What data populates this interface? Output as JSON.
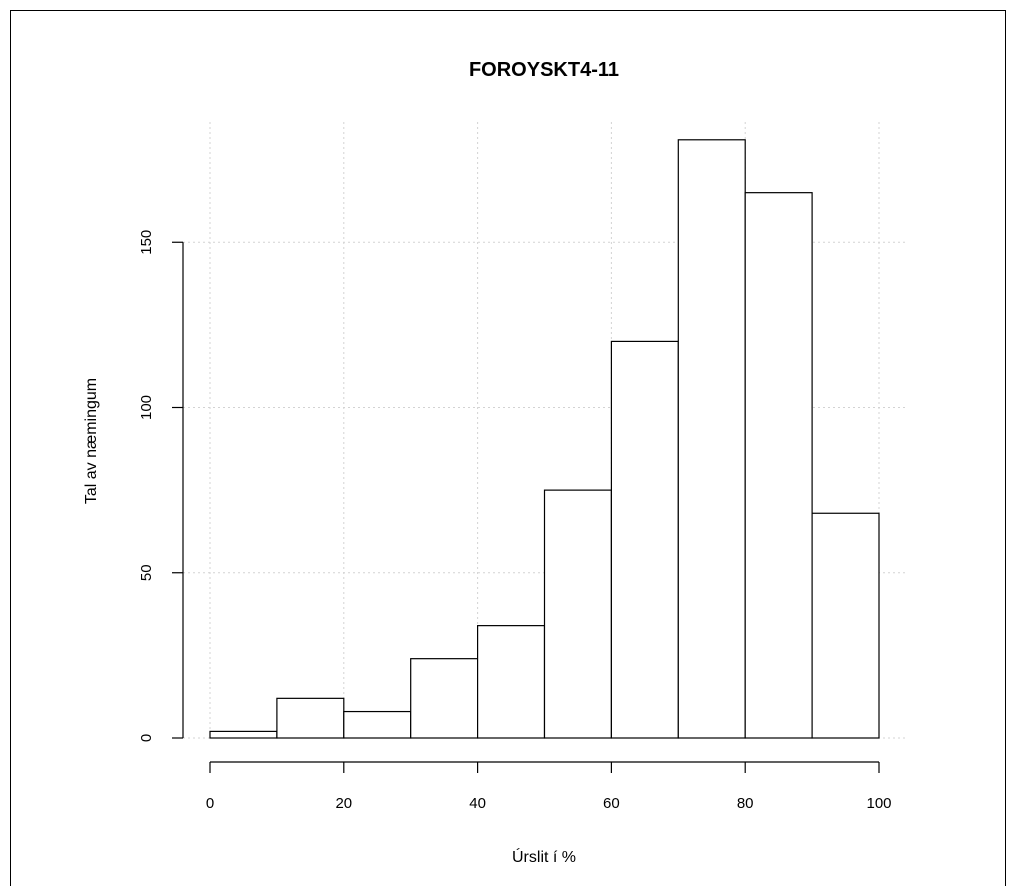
{
  "chart_data": {
    "type": "bar",
    "title": "FOROYSKT4-11",
    "xlabel": "Úrslit í %",
    "ylabel": "Tal av næmingum",
    "bins": [
      {
        "from": 0,
        "to": 10,
        "count": 2
      },
      {
        "from": 10,
        "to": 20,
        "count": 12
      },
      {
        "from": 20,
        "to": 30,
        "count": 8
      },
      {
        "from": 30,
        "to": 40,
        "count": 24
      },
      {
        "from": 40,
        "to": 50,
        "count": 34
      },
      {
        "from": 50,
        "to": 60,
        "count": 75
      },
      {
        "from": 60,
        "to": 70,
        "count": 120
      },
      {
        "from": 70,
        "to": 80,
        "count": 181
      },
      {
        "from": 80,
        "to": 90,
        "count": 165
      },
      {
        "from": 90,
        "to": 100,
        "count": 68
      }
    ],
    "xticks": [
      0,
      20,
      40,
      60,
      80,
      100
    ],
    "yticks": [
      0,
      50,
      100,
      150
    ],
    "xlim": [
      0,
      100
    ],
    "ylim": [
      0,
      181
    ],
    "grid": true,
    "colors": {
      "bar_fill": "#ffffff",
      "bar_stroke": "#000000",
      "grid": "#d3d3d3"
    }
  }
}
